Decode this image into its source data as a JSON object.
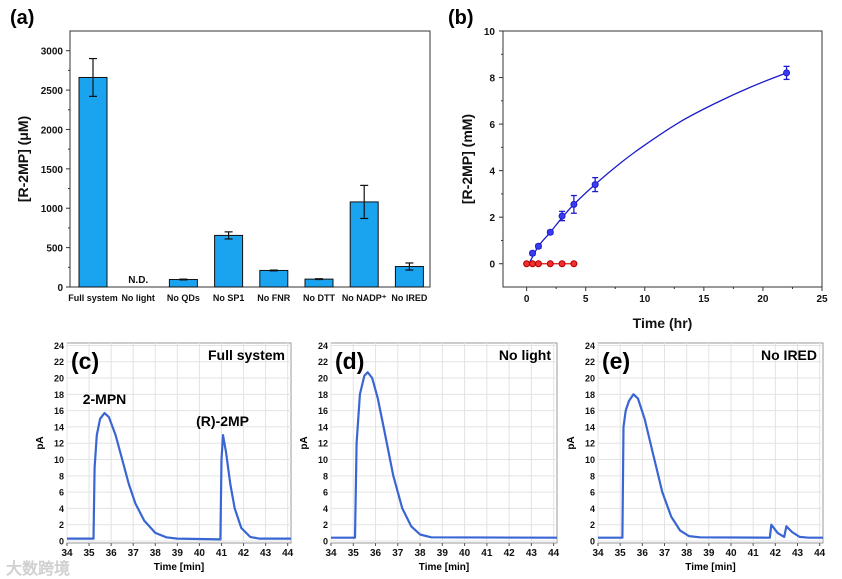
{
  "watermark": "大数跨境",
  "chart_data": [
    {
      "panel_label": "(a)",
      "type": "bar",
      "title": "",
      "xlabel": "",
      "ylabel": "[R-2MP] (μM)",
      "ylim": [
        0,
        3250
      ],
      "yticks": [
        "0",
        "500",
        "1000",
        "1500",
        "2000",
        "2500",
        "3000"
      ],
      "categories": [
        "Full system",
        "No light",
        "No QDs",
        "No SP1",
        "No FNR",
        "No DTT",
        "No NADP⁺",
        "No IRED"
      ],
      "values": [
        2660,
        null,
        95,
        655,
        210,
        100,
        1080,
        260
      ],
      "errors": [
        240,
        null,
        5,
        45,
        5,
        5,
        210,
        45
      ],
      "annotations": [
        {
          "category": "No light",
          "text": "N.D."
        }
      ],
      "bar_color": "#1aa3ef"
    },
    {
      "panel_label": "(b)",
      "type": "scatter",
      "xlabel": "Time (hr)",
      "ylabel": "[R-2MP] (mM)",
      "xlim": [
        -2,
        25
      ],
      "ylim": [
        -1,
        10
      ],
      "xticks": [
        "0",
        "5",
        "10",
        "15",
        "20",
        "25"
      ],
      "yticks": [
        "0",
        "2",
        "4",
        "6",
        "8",
        "10"
      ],
      "series": [
        {
          "name": "blue",
          "color": "#1c1ccc",
          "x": [
            0.5,
            1,
            2,
            3,
            4,
            5.8,
            22
          ],
          "y": [
            0.45,
            0.75,
            1.35,
            2.05,
            2.55,
            3.4,
            8.2
          ],
          "err": [
            0.08,
            0.08,
            0.08,
            0.2,
            0.38,
            0.3,
            0.28
          ],
          "fit": {
            "x": [
              0.2,
              1,
              2,
              3,
              4,
              6,
              8,
              10,
              13,
              16,
              19,
              22
            ],
            "y": [
              0,
              0.75,
              1.35,
              1.98,
              2.55,
              3.5,
              4.35,
              5.1,
              6.1,
              6.9,
              7.6,
              8.2
            ]
          }
        },
        {
          "name": "red",
          "color": "#e01010",
          "x": [
            0,
            0.5,
            1,
            2,
            3,
            4
          ],
          "y": [
            0,
            0,
            0,
            0,
            0,
            0
          ]
        }
      ]
    },
    {
      "panel_label": "(c)",
      "type": "line",
      "title": "Full system",
      "xlabel": "Time [min]",
      "ylabel": "pA",
      "xlim": [
        34,
        44.15
      ],
      "ylim": [
        0,
        24.3
      ],
      "xticks": [
        "34",
        "35",
        "36",
        "37",
        "38",
        "39",
        "40",
        "41",
        "42",
        "43",
        "44"
      ],
      "yticks": [
        "0",
        "2",
        "4",
        "6",
        "8",
        "10",
        "12",
        "14",
        "16",
        "18",
        "20",
        "22",
        "24"
      ],
      "annotations": [
        {
          "text": "2-MPN",
          "x": 35.7,
          "y": 15.7
        },
        {
          "text": "(R)-2MP",
          "x": 41.05,
          "y": 13
        }
      ],
      "color": "#3a66d4",
      "trace": [
        [
          34,
          0.3
        ],
        [
          35.2,
          0.3
        ],
        [
          35.25,
          9
        ],
        [
          35.35,
          13
        ],
        [
          35.5,
          15
        ],
        [
          35.7,
          15.7
        ],
        [
          35.9,
          15.2
        ],
        [
          36.2,
          13
        ],
        [
          36.5,
          10
        ],
        [
          36.8,
          7
        ],
        [
          37.1,
          4.6
        ],
        [
          37.5,
          2.5
        ],
        [
          38,
          1
        ],
        [
          38.5,
          0.45
        ],
        [
          39,
          0.3
        ],
        [
          40.95,
          0.2
        ],
        [
          41.0,
          10
        ],
        [
          41.07,
          13
        ],
        [
          41.2,
          11
        ],
        [
          41.4,
          7
        ],
        [
          41.6,
          4
        ],
        [
          41.9,
          1.6
        ],
        [
          42.3,
          0.5
        ],
        [
          42.7,
          0.3
        ],
        [
          44.15,
          0.3
        ]
      ]
    },
    {
      "panel_label": "(d)",
      "type": "line",
      "title": "No light",
      "xlabel": "Time [min]",
      "ylabel": "pA",
      "xlim": [
        34,
        44.15
      ],
      "ylim": [
        0,
        24.3
      ],
      "xticks": [
        "34",
        "35",
        "36",
        "37",
        "38",
        "39",
        "40",
        "41",
        "42",
        "43",
        "44"
      ],
      "yticks": [
        "0",
        "2",
        "4",
        "6",
        "8",
        "10",
        "12",
        "14",
        "16",
        "18",
        "20",
        "22",
        "24"
      ],
      "color": "#3a66d4",
      "trace": [
        [
          34,
          0.4
        ],
        [
          35.08,
          0.4
        ],
        [
          35.15,
          12
        ],
        [
          35.3,
          18
        ],
        [
          35.5,
          20.3
        ],
        [
          35.65,
          20.7
        ],
        [
          35.85,
          20
        ],
        [
          36.1,
          17.5
        ],
        [
          36.4,
          13.5
        ],
        [
          36.8,
          8
        ],
        [
          37.2,
          4
        ],
        [
          37.6,
          1.8
        ],
        [
          38,
          0.8
        ],
        [
          38.5,
          0.45
        ],
        [
          44.15,
          0.4
        ]
      ]
    },
    {
      "panel_label": "(e)",
      "type": "line",
      "title": "No IRED",
      "xlabel": "Time [min]",
      "ylabel": "pA",
      "xlim": [
        34,
        44.15
      ],
      "ylim": [
        0,
        24.3
      ],
      "xticks": [
        "34",
        "35",
        "36",
        "37",
        "38",
        "39",
        "40",
        "41",
        "42",
        "43",
        "44"
      ],
      "yticks": [
        "0",
        "2",
        "4",
        "6",
        "8",
        "10",
        "12",
        "14",
        "16",
        "18",
        "20",
        "22",
        "24"
      ],
      "color": "#3a66d4",
      "trace": [
        [
          34,
          0.4
        ],
        [
          35.1,
          0.4
        ],
        [
          35.15,
          14
        ],
        [
          35.25,
          16
        ],
        [
          35.4,
          17.2
        ],
        [
          35.6,
          18
        ],
        [
          35.8,
          17.5
        ],
        [
          36.1,
          15
        ],
        [
          36.5,
          10.5
        ],
        [
          36.9,
          6
        ],
        [
          37.3,
          3
        ],
        [
          37.7,
          1.3
        ],
        [
          38.1,
          0.6
        ],
        [
          38.6,
          0.45
        ],
        [
          41.75,
          0.4
        ],
        [
          41.82,
          2
        ],
        [
          42.1,
          1
        ],
        [
          42.4,
          0.5
        ],
        [
          42.5,
          1.8
        ],
        [
          42.75,
          1.1
        ],
        [
          43.1,
          0.5
        ],
        [
          43.5,
          0.4
        ],
        [
          44.15,
          0.4
        ]
      ]
    }
  ]
}
